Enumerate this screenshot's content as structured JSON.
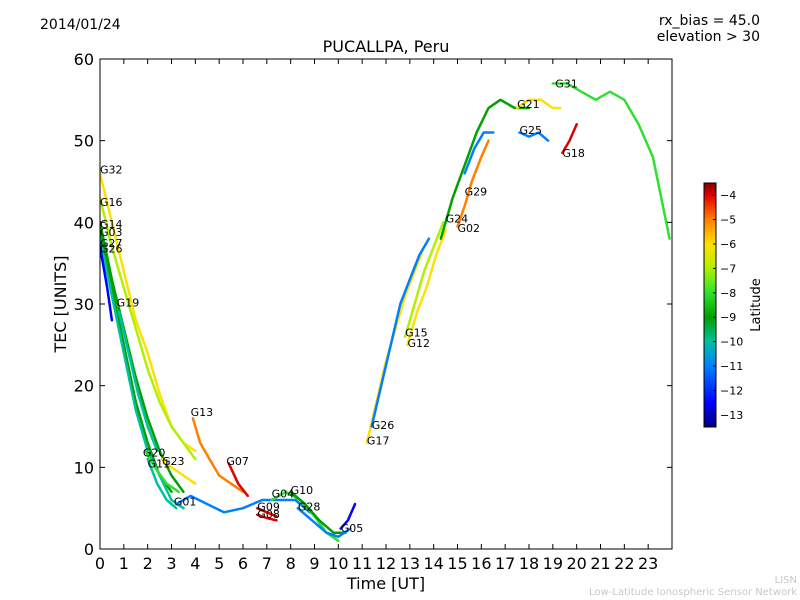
{
  "header": {
    "date": "2014/01/24",
    "rx_bias": "rx_bias = 45.0",
    "elevation": "elevation > 30"
  },
  "footer": {
    "line1": "LISN",
    "line2": "Low-Latitude Ionospheric Sensor Network"
  },
  "colormap": [
    "#00007f",
    "#0000ff",
    "#0080ff",
    "#00c0a0",
    "#00a000",
    "#30e030",
    "#b0f000",
    "#ffe000",
    "#ff8000",
    "#e00000",
    "#800000"
  ],
  "chart_data": {
    "type": "line",
    "title": "PUCALLPA, Peru",
    "xlabel": "Time [UT]",
    "ylabel": "TEC [UNITS]",
    "xlim": [
      0,
      24
    ],
    "ylim": [
      0,
      60
    ],
    "xticks": [
      0,
      1,
      2,
      3,
      4,
      5,
      6,
      7,
      8,
      9,
      10,
      11,
      12,
      13,
      14,
      15,
      16,
      17,
      18,
      19,
      20,
      21,
      22,
      23
    ],
    "yticks": [
      0,
      10,
      20,
      30,
      40,
      50,
      60
    ],
    "colorbar": {
      "label": "Latitude",
      "range": [
        -13.5,
        -3.5
      ],
      "ticks": [
        -13,
        -12,
        -11,
        -10,
        -9,
        -8,
        -7,
        -6,
        -5,
        -4
      ]
    },
    "series": [
      {
        "name": "G32",
        "label_x": 0.0,
        "label_y": 46.5,
        "lat": -6.5,
        "points": [
          [
            0.0,
            46
          ],
          [
            0.5,
            40
          ],
          [
            1.0,
            34
          ],
          [
            1.5,
            28
          ],
          [
            2.0,
            24
          ],
          [
            2.5,
            19
          ],
          [
            3.0,
            15
          ],
          [
            3.5,
            13
          ],
          [
            4.0,
            12
          ]
        ]
      },
      {
        "name": "G16",
        "label_x": 0.0,
        "label_y": 42.5,
        "lat": -8.0,
        "points": [
          [
            0.0,
            43
          ],
          [
            0.5,
            37
          ],
          [
            1.0,
            32
          ],
          [
            1.5,
            27
          ],
          [
            2.0,
            22
          ],
          [
            2.5,
            18
          ],
          [
            3.0,
            15
          ],
          [
            3.5,
            13
          ],
          [
            4.0,
            11
          ]
        ]
      },
      {
        "name": "G14",
        "label_x": 0.0,
        "label_y": 39.8,
        "lat": -9.5,
        "points": [
          [
            0.0,
            40
          ],
          [
            0.5,
            33
          ],
          [
            1.0,
            27
          ],
          [
            1.5,
            21
          ],
          [
            2.0,
            16
          ],
          [
            2.5,
            12
          ],
          [
            3.0,
            9
          ],
          [
            3.5,
            7
          ]
        ]
      },
      {
        "name": "G03",
        "label_x": 0.0,
        "label_y": 38.8,
        "lat": -10.0,
        "points": [
          [
            0.0,
            39
          ],
          [
            0.5,
            32
          ],
          [
            1.0,
            25
          ],
          [
            1.5,
            18
          ],
          [
            2.0,
            13
          ],
          [
            2.5,
            9
          ],
          [
            3.0,
            7
          ]
        ]
      },
      {
        "name": "G27",
        "label_x": 0.0,
        "label_y": 37.5,
        "lat": -11.0,
        "points": [
          [
            0.0,
            38
          ],
          [
            0.5,
            31
          ],
          [
            1.0,
            24
          ],
          [
            1.5,
            17
          ],
          [
            2.0,
            12
          ],
          [
            2.5,
            9
          ],
          [
            3.0,
            6
          ],
          [
            3.5,
            5
          ]
        ]
      },
      {
        "name": "G26",
        "label_x": 0.0,
        "label_y": 36.8,
        "lat": -12.8,
        "points": [
          [
            0.0,
            37
          ],
          [
            0.3,
            32
          ],
          [
            0.5,
            28
          ]
        ]
      },
      {
        "name": "G19",
        "label_x": 0.7,
        "label_y": 30.2,
        "lat": -10.5,
        "points": [
          [
            0.8,
            29
          ],
          [
            1.2,
            24
          ],
          [
            1.6,
            19
          ],
          [
            2.0,
            15
          ],
          [
            2.4,
            12
          ]
        ]
      },
      {
        "name": "G20",
        "label_x": 1.8,
        "label_y": 11.8,
        "lat": -9.0,
        "points": [
          [
            1.9,
            12
          ],
          [
            2.3,
            10
          ],
          [
            2.8,
            8
          ],
          [
            3.3,
            7
          ]
        ]
      },
      {
        "name": "G11",
        "label_x": 2.0,
        "label_y": 10.5,
        "lat": -10.5,
        "points": [
          [
            2.0,
            11
          ],
          [
            2.4,
            8
          ],
          [
            2.8,
            6
          ],
          [
            3.2,
            5
          ]
        ]
      },
      {
        "name": "G23",
        "label_x": 2.6,
        "label_y": 10.8,
        "lat": -7.0,
        "points": [
          [
            2.6,
            11
          ],
          [
            3.0,
            10
          ],
          [
            3.5,
            9
          ],
          [
            4.0,
            8
          ]
        ]
      },
      {
        "name": "G13",
        "label_x": 3.8,
        "label_y": 16.8,
        "lat": -6.0,
        "points": [
          [
            3.9,
            16
          ],
          [
            4.2,
            13
          ],
          [
            4.6,
            11
          ],
          [
            5.0,
            9
          ],
          [
            5.5,
            8
          ],
          [
            6.0,
            7
          ]
        ]
      },
      {
        "name": "G07",
        "label_x": 5.3,
        "label_y": 10.8,
        "lat": -4.5,
        "points": [
          [
            5.4,
            10.5
          ],
          [
            5.8,
            8
          ],
          [
            6.2,
            6.5
          ]
        ]
      },
      {
        "name": "G01",
        "label_x": 3.1,
        "label_y": 5.8,
        "lat": -12.0,
        "points": [
          [
            3.2,
            5.5
          ],
          [
            3.8,
            6.5
          ],
          [
            4.5,
            5.5
          ],
          [
            5.2,
            4.5
          ],
          [
            6.0,
            5
          ],
          [
            6.8,
            6
          ],
          [
            7.5,
            6
          ],
          [
            8.2,
            6
          ],
          [
            8.8,
            4.5
          ]
        ]
      },
      {
        "name": "G04",
        "label_x": 7.2,
        "label_y": 6.8,
        "lat": -8.5,
        "points": [
          [
            7.2,
            6
          ],
          [
            7.8,
            7
          ],
          [
            8.4,
            6
          ],
          [
            9.0,
            4
          ],
          [
            9.5,
            2
          ],
          [
            10.0,
            1
          ]
        ]
      },
      {
        "name": "G10",
        "label_x": 8.0,
        "label_y": 7.2,
        "lat": -9.5,
        "points": [
          [
            8.0,
            7
          ],
          [
            8.6,
            5.5
          ],
          [
            9.2,
            3.5
          ],
          [
            9.8,
            2
          ],
          [
            10.3,
            2
          ]
        ]
      },
      {
        "name": "G28",
        "label_x": 8.3,
        "label_y": 5.2,
        "lat": -11.5,
        "points": [
          [
            8.3,
            5
          ],
          [
            8.9,
            3.5
          ],
          [
            9.5,
            2
          ],
          [
            10.0,
            1.5
          ],
          [
            10.5,
            2.5
          ]
        ]
      },
      {
        "name": "G09",
        "label_x": 6.6,
        "label_y": 5.2,
        "lat": -4.5,
        "points": [
          [
            6.6,
            5
          ],
          [
            7.0,
            4.5
          ],
          [
            7.4,
            4
          ]
        ]
      },
      {
        "name": "G08",
        "label_x": 6.6,
        "label_y": 4.3,
        "lat": -5.0,
        "points": [
          [
            6.6,
            4.2
          ],
          [
            7.0,
            3.8
          ],
          [
            7.4,
            3.5
          ]
        ]
      },
      {
        "name": "G05",
        "label_x": 10.1,
        "label_y": 2.6,
        "lat": -12.5,
        "points": [
          [
            10.1,
            2.5
          ],
          [
            10.4,
            3.5
          ],
          [
            10.7,
            5.5
          ]
        ]
      },
      {
        "name": "G17",
        "label_x": 11.2,
        "label_y": 13.3,
        "lat": -7.0,
        "points": [
          [
            11.2,
            13
          ],
          [
            11.6,
            18
          ],
          [
            12.0,
            23
          ],
          [
            12.4,
            27
          ],
          [
            12.8,
            31
          ],
          [
            13.2,
            34
          ],
          [
            13.6,
            37
          ]
        ]
      },
      {
        "name": "G26",
        "label_x": 11.4,
        "label_y": 15.2,
        "lat": -11.5,
        "points": [
          [
            11.4,
            15
          ],
          [
            11.8,
            20
          ],
          [
            12.2,
            25
          ],
          [
            12.6,
            30
          ],
          [
            13.0,
            33
          ],
          [
            13.4,
            36
          ],
          [
            13.8,
            38
          ]
        ]
      },
      {
        "name": "G15",
        "label_x": 12.8,
        "label_y": 26.5,
        "lat": -8.0,
        "points": [
          [
            12.8,
            26
          ],
          [
            13.2,
            30
          ],
          [
            13.6,
            34
          ],
          [
            14.0,
            37
          ],
          [
            14.4,
            40
          ]
        ]
      },
      {
        "name": "G12",
        "label_x": 12.9,
        "label_y": 25.2,
        "lat": -6.5,
        "points": [
          [
            12.9,
            25
          ],
          [
            13.3,
            29
          ],
          [
            13.7,
            32
          ],
          [
            14.1,
            36
          ],
          [
            14.5,
            39
          ]
        ]
      },
      {
        "name": "G24",
        "label_x": 14.5,
        "label_y": 40.5,
        "lat": -9.5,
        "points": [
          [
            14.3,
            38
          ],
          [
            14.8,
            43
          ],
          [
            15.3,
            47
          ],
          [
            15.8,
            51
          ],
          [
            16.3,
            54
          ],
          [
            16.8,
            55
          ],
          [
            17.4,
            54
          ],
          [
            18.0,
            54
          ]
        ]
      },
      {
        "name": "G02",
        "label_x": 15.0,
        "label_y": 39.3,
        "lat": -5.5,
        "points": [
          [
            15.0,
            39.5
          ],
          [
            15.3,
            42
          ],
          [
            15.6,
            45
          ],
          [
            16.0,
            48
          ],
          [
            16.3,
            50
          ]
        ]
      },
      {
        "name": "G29",
        "label_x": 15.3,
        "label_y": 43.8,
        "lat": -12.0,
        "points": [
          [
            15.3,
            46
          ],
          [
            15.7,
            49
          ],
          [
            16.1,
            51
          ],
          [
            16.5,
            51
          ]
        ]
      },
      {
        "name": "G21",
        "label_x": 17.5,
        "label_y": 54.5,
        "lat": -7.0,
        "points": [
          [
            17.5,
            54
          ],
          [
            18.0,
            55
          ],
          [
            18.5,
            55
          ],
          [
            19.0,
            54
          ],
          [
            19.3,
            54
          ]
        ]
      },
      {
        "name": "G25",
        "label_x": 17.6,
        "label_y": 51.3,
        "lat": -12.0,
        "points": [
          [
            17.6,
            51
          ],
          [
            18.0,
            50.5
          ],
          [
            18.4,
            51
          ],
          [
            18.8,
            50
          ]
        ]
      },
      {
        "name": "G31",
        "label_x": 19.1,
        "label_y": 57.0,
        "lat": -9.0,
        "points": [
          [
            19.0,
            57
          ],
          [
            19.6,
            57
          ],
          [
            20.2,
            56
          ],
          [
            20.8,
            55
          ],
          [
            21.4,
            56
          ],
          [
            22.0,
            55
          ],
          [
            22.6,
            52
          ],
          [
            23.2,
            48
          ],
          [
            23.9,
            38
          ]
        ]
      },
      {
        "name": "G18",
        "label_x": 19.4,
        "label_y": 48.5,
        "lat": -4.5,
        "points": [
          [
            19.4,
            48.5
          ],
          [
            19.7,
            50
          ],
          [
            20.0,
            52
          ]
        ]
      }
    ]
  }
}
